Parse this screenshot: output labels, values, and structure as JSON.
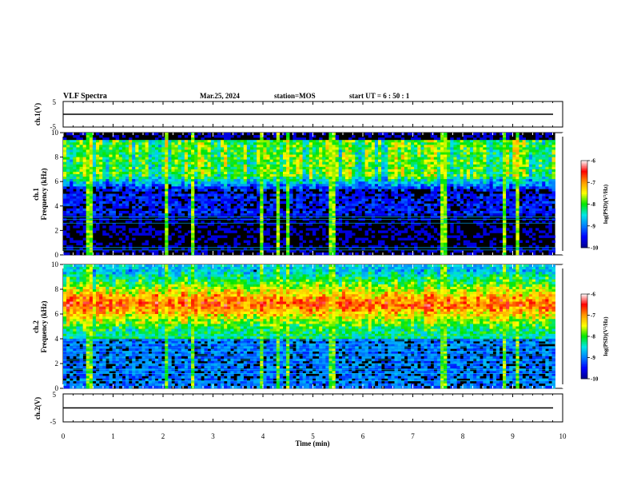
{
  "header": {
    "title": "VLF Spectra",
    "date": "Mar.25, 2024",
    "station": "station=MOS",
    "start": "start UT =  6 : 50 : 1"
  },
  "chart_data": {
    "type": "heatmap",
    "xlabel": "Time (min)",
    "xlim": [
      0,
      10
    ],
    "xticks": [
      "0",
      "1",
      "2",
      "3",
      "4",
      "5",
      "6",
      "7",
      "8",
      "9",
      "10"
    ],
    "waveform_panels": [
      {
        "id": "ch1",
        "ylabel": "ch.1(V)",
        "ylim": [
          -5,
          5
        ],
        "yticks": [
          "5",
          "-5"
        ],
        "baseline": 0
      },
      {
        "id": "ch2",
        "ylabel": "ch.2(V)",
        "ylim": [
          -5,
          5
        ],
        "yticks": [
          "5",
          "-5"
        ],
        "baseline": 0
      }
    ],
    "spectrogram_panels": [
      {
        "id": "ch1",
        "ylabel_line1": "ch.1",
        "ylabel_line2": "Frequency (kHz)",
        "ylim": [
          0,
          10
        ],
        "yticks": [
          "0",
          "2",
          "4",
          "6",
          "8",
          "10"
        ],
        "data_end_min": 9.85,
        "band_low_khz": 5.0,
        "band_high_khz": 9.3,
        "band_level": -8.3,
        "background_level": -9.9,
        "narrowband_lines_khz": [
          0.4,
          0.6,
          2.6,
          2.9,
          3.1
        ],
        "spikes_min": [
          0.52,
          2.05,
          2.58,
          3.98,
          4.28,
          4.52,
          5.38,
          7.62,
          8.85,
          9.12
        ]
      },
      {
        "id": "ch2",
        "ylabel_line1": "ch.2",
        "ylabel_line2": "Frequency (kHz)",
        "ylim": [
          0,
          10
        ],
        "yticks": [
          "0",
          "2",
          "4",
          "6",
          "8",
          "10"
        ],
        "data_end_min": 9.85,
        "band_low_khz": 4.7,
        "band_high_khz": 9.6,
        "band_peak_khz": 6.8,
        "band_level": -6.8,
        "background_level": -9.6,
        "narrowband_lines_khz": [
          0.6,
          1.2,
          1.5,
          2.0,
          2.3,
          2.7,
          3.0,
          3.3,
          3.6,
          3.9,
          4.2
        ],
        "spikes_min": [
          0.52,
          2.05,
          2.58,
          3.98,
          4.28,
          4.52,
          5.38,
          7.62,
          8.85,
          9.12
        ]
      }
    ],
    "colorbar": {
      "label": "log(PSD)(V²/Hz)",
      "min": -10,
      "max": -6,
      "ticks": [
        "-6",
        "-7",
        "-8",
        "-9",
        "-10"
      ],
      "colormap": [
        "#00008c",
        "#0000ff",
        "#0080ff",
        "#00e6e6",
        "#00e600",
        "#ffff00",
        "#ff9900",
        "#ff0000",
        "#ffffff"
      ]
    }
  }
}
